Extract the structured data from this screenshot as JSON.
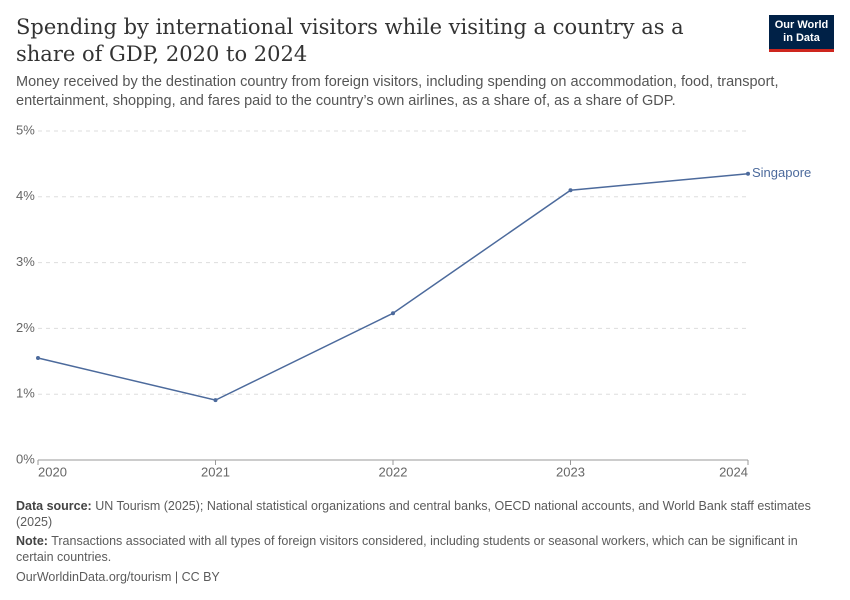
{
  "chart_data": {
    "type": "line",
    "title": "Spending by international visitors while visiting a country as a share of GDP, 2020 to 2024",
    "subtitle": "Money received by the destination country from foreign visitors, including spending on accommodation, food, transport, entertainment, shopping, and fares paid to the country’s own airlines, as a share of, as a share of GDP.",
    "logo": [
      "Our World",
      "in Data"
    ],
    "x": [
      2020,
      2021,
      2022,
      2023,
      2024
    ],
    "series": [
      {
        "name": "Singapore",
        "color": "#4c6a9c",
        "values": [
          1.55,
          0.91,
          2.23,
          4.1,
          4.35
        ]
      }
    ],
    "xlim": [
      2020,
      2024
    ],
    "xticks": [
      2020,
      2021,
      2022,
      2023,
      2024
    ],
    "ylim": [
      0,
      5
    ],
    "yticks": [
      {
        "value": 0,
        "label": "0%"
      },
      {
        "value": 1,
        "label": "1%"
      },
      {
        "value": 2,
        "label": "2%"
      },
      {
        "value": 3,
        "label": "3%"
      },
      {
        "value": 4,
        "label": "4%"
      },
      {
        "value": 5,
        "label": "5%"
      }
    ],
    "grid": true,
    "source_label": "Data source:",
    "source": "UN Tourism (2025); National statistical organizations and central banks, OECD national accounts, and World Bank staff estimates (2025)",
    "note_label": "Note:",
    "note": "Transactions associated with all types of foreign visitors considered, including students or seasonal workers, which can be significant in certain countries.",
    "footer": "OurWorldinData.org/tourism | CC BY"
  }
}
